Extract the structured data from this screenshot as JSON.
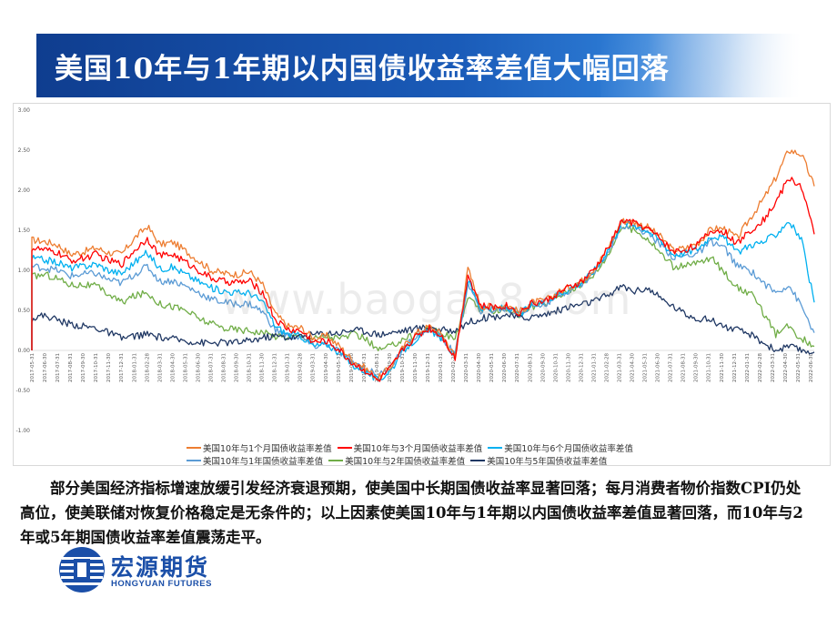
{
  "header": {
    "title": "美国10年与1年期以内国债收益率差值大幅回落"
  },
  "watermark": "www.baogao8.com",
  "summary": "部分美国经济指标增速放缓引发经济衰退预期，使美国中长期国债收益率显著回落；每月消费者物价指数CPI仍处高位，使美联储对恢复价格稳定是无条件的；以上因素使美国10年与1年期以内国债收益率差值显著回落，而10年与2年或5年期国债收益率差值震荡走平。",
  "logo": {
    "name_cn": "宏源期货",
    "name_en": "HONGYUAN FUTURES",
    "color": "#1b4fa8"
  },
  "chart_data": {
    "type": "line",
    "ylim": [
      -1.0,
      3.0
    ],
    "yticks": [
      "3.00",
      "2.50",
      "2.00",
      "1.50",
      "1.00",
      "0.50",
      "0.00",
      "-0.50",
      "-1.00"
    ],
    "xtick_labels": [
      "2017-05-31",
      "2017-06-30",
      "2017-07-31",
      "2017-08-31",
      "2017-09-30",
      "2017-10-31",
      "2017-11-30",
      "2017-12-31",
      "2018-01-31",
      "2018-02-28",
      "2018-03-31",
      "2018-04-30",
      "2018-05-31",
      "2018-06-30",
      "2018-07-31",
      "2018-08-31",
      "2018-09-30",
      "2018-10-31",
      "2018-11-30",
      "2018-12-31",
      "2019-01-31",
      "2019-02-28",
      "2019-03-31",
      "2019-04-30",
      "2019-05-31",
      "2019-06-30",
      "2019-07-31",
      "2019-08-31",
      "2019-09-30",
      "2019-10-31",
      "2019-11-30",
      "2019-12-31",
      "2020-01-31",
      "2020-02-29",
      "2020-03-31",
      "2020-04-30",
      "2020-05-31",
      "2020-06-30",
      "2020-07-31",
      "2020-08-31",
      "2020-09-30",
      "2020-10-31",
      "2020-11-30",
      "2020-12-31",
      "2021-01-31",
      "2021-02-28",
      "2021-03-31",
      "2021-04-30",
      "2021-05-31",
      "2021-06-30",
      "2021-07-31",
      "2021-08-31",
      "2021-09-30",
      "2021-10-31",
      "2021-11-30",
      "2021-12-31",
      "2022-01-31",
      "2022-02-28",
      "2022-03-31",
      "2022-04-30",
      "2022-05-31",
      "2022-06-30"
    ],
    "legend_rows": [
      [
        0,
        1,
        2
      ],
      [
        3,
        4,
        5
      ]
    ],
    "x": [
      "2017-05",
      "2017-06",
      "2017-07",
      "2017-08",
      "2017-09",
      "2017-10",
      "2017-11",
      "2017-12",
      "2018-01",
      "2018-02",
      "2018-03",
      "2018-04",
      "2018-05",
      "2018-06",
      "2018-07",
      "2018-08",
      "2018-09",
      "2018-10",
      "2018-11",
      "2018-12",
      "2019-01",
      "2019-02",
      "2019-03",
      "2019-04",
      "2019-05",
      "2019-06",
      "2019-07",
      "2019-08",
      "2019-09",
      "2019-10",
      "2019-11",
      "2019-12",
      "2020-01",
      "2020-02",
      "2020-03",
      "2020-04",
      "2020-05",
      "2020-06",
      "2020-07",
      "2020-08",
      "2020-09",
      "2020-10",
      "2020-11",
      "2020-12",
      "2021-01",
      "2021-02",
      "2021-03",
      "2021-04",
      "2021-05",
      "2021-06",
      "2021-07",
      "2021-08",
      "2021-09",
      "2021-10",
      "2021-11",
      "2021-12",
      "2022-01",
      "2022-02",
      "2022-03",
      "2022-04",
      "2022-05",
      "2022-06"
    ],
    "series": [
      {
        "name": "美国10年与1个月国债收益率差值",
        "color": "#ed7d31",
        "values": [
          1.38,
          1.36,
          1.32,
          1.2,
          1.23,
          1.28,
          1.22,
          1.2,
          1.4,
          1.55,
          1.32,
          1.35,
          1.24,
          1.12,
          1.0,
          0.96,
          0.95,
          0.98,
          0.82,
          0.45,
          0.3,
          0.28,
          0.15,
          0.18,
          0.05,
          -0.12,
          -0.22,
          -0.35,
          -0.2,
          0.05,
          0.22,
          0.3,
          0.2,
          -0.08,
          1.02,
          0.55,
          0.55,
          0.57,
          0.48,
          0.6,
          0.62,
          0.72,
          0.8,
          0.88,
          1.05,
          1.3,
          1.62,
          1.6,
          1.54,
          1.42,
          1.25,
          1.28,
          1.35,
          1.52,
          1.52,
          1.4,
          1.65,
          1.88,
          2.15,
          2.5,
          2.45,
          2.05
        ]
      },
      {
        "name": "美国10年与3个月国债收益率差值",
        "color": "#ff0000",
        "values": [
          1.28,
          1.25,
          1.22,
          1.12,
          1.15,
          1.2,
          1.12,
          1.08,
          1.25,
          1.4,
          1.18,
          1.2,
          1.1,
          1.0,
          0.9,
          0.86,
          0.85,
          0.86,
          0.72,
          0.38,
          0.26,
          0.24,
          0.1,
          0.12,
          0.0,
          -0.16,
          -0.25,
          -0.38,
          -0.22,
          0.03,
          0.18,
          0.28,
          0.18,
          -0.1,
          0.95,
          0.55,
          0.54,
          0.56,
          0.47,
          0.59,
          0.61,
          0.71,
          0.79,
          0.87,
          1.04,
          1.3,
          1.62,
          1.59,
          1.52,
          1.4,
          1.23,
          1.26,
          1.33,
          1.5,
          1.48,
          1.33,
          1.5,
          1.62,
          1.85,
          2.15,
          2.05,
          1.45
        ]
      },
      {
        "name": "美国10年与6个月国债收益率差值",
        "color": "#00b0f0",
        "values": [
          1.15,
          1.13,
          1.1,
          1.03,
          1.05,
          1.08,
          1.0,
          0.96,
          1.1,
          1.22,
          1.02,
          1.04,
          0.95,
          0.86,
          0.78,
          0.74,
          0.72,
          0.72,
          0.6,
          0.3,
          0.2,
          0.18,
          0.05,
          0.08,
          -0.03,
          -0.18,
          -0.26,
          -0.38,
          -0.24,
          0.0,
          0.15,
          0.25,
          0.15,
          -0.08,
          0.88,
          0.52,
          0.52,
          0.54,
          0.45,
          0.57,
          0.6,
          0.7,
          0.78,
          0.86,
          1.03,
          1.28,
          1.6,
          1.57,
          1.5,
          1.37,
          1.2,
          1.22,
          1.28,
          1.44,
          1.4,
          1.22,
          1.32,
          1.35,
          1.45,
          1.62,
          1.38,
          0.6
        ]
      },
      {
        "name": "美国10年与1年国债收益率差值",
        "color": "#5b9bd5",
        "values": [
          1.05,
          1.03,
          1.0,
          0.93,
          0.95,
          0.96,
          0.88,
          0.84,
          0.95,
          1.05,
          0.86,
          0.87,
          0.8,
          0.72,
          0.64,
          0.6,
          0.58,
          0.58,
          0.48,
          0.25,
          0.18,
          0.16,
          0.05,
          0.08,
          -0.02,
          -0.15,
          -0.22,
          -0.32,
          -0.2,
          0.03,
          0.17,
          0.27,
          0.15,
          -0.05,
          0.82,
          0.5,
          0.5,
          0.52,
          0.44,
          0.55,
          0.58,
          0.68,
          0.76,
          0.84,
          1.0,
          1.25,
          1.57,
          1.54,
          1.46,
          1.33,
          1.16,
          1.18,
          1.22,
          1.36,
          1.28,
          1.05,
          1.0,
          0.85,
          0.72,
          0.82,
          0.55,
          0.22
        ]
      },
      {
        "name": "美国10年与2年国债收益率差值",
        "color": "#70ad47",
        "values": [
          0.92,
          0.95,
          0.9,
          0.82,
          0.82,
          0.8,
          0.7,
          0.6,
          0.68,
          0.72,
          0.58,
          0.55,
          0.5,
          0.4,
          0.33,
          0.28,
          0.26,
          0.25,
          0.22,
          0.18,
          0.17,
          0.18,
          0.15,
          0.18,
          0.15,
          0.2,
          0.15,
          0.0,
          0.05,
          0.15,
          0.2,
          0.28,
          0.2,
          0.15,
          0.65,
          0.5,
          0.5,
          0.52,
          0.44,
          0.55,
          0.58,
          0.68,
          0.76,
          0.84,
          0.98,
          1.22,
          1.55,
          1.5,
          1.4,
          1.22,
          1.05,
          1.05,
          1.1,
          1.15,
          0.98,
          0.78,
          0.72,
          0.48,
          0.2,
          0.3,
          0.15,
          0.05
        ]
      },
      {
        "name": "美国10年与5年国债收益率差值",
        "color": "#203864",
        "values": [
          0.4,
          0.44,
          0.38,
          0.33,
          0.3,
          0.28,
          0.22,
          0.15,
          0.18,
          0.2,
          0.16,
          0.14,
          0.12,
          0.1,
          0.09,
          0.1,
          0.1,
          0.12,
          0.16,
          0.18,
          0.16,
          0.17,
          0.2,
          0.22,
          0.22,
          0.26,
          0.24,
          0.2,
          0.22,
          0.25,
          0.27,
          0.3,
          0.25,
          0.25,
          0.35,
          0.4,
          0.42,
          0.45,
          0.4,
          0.42,
          0.45,
          0.5,
          0.55,
          0.58,
          0.62,
          0.7,
          0.8,
          0.74,
          0.78,
          0.65,
          0.55,
          0.45,
          0.4,
          0.38,
          0.3,
          0.25,
          0.2,
          0.1,
          0.0,
          0.05,
          0.0,
          -0.02
        ]
      }
    ]
  }
}
